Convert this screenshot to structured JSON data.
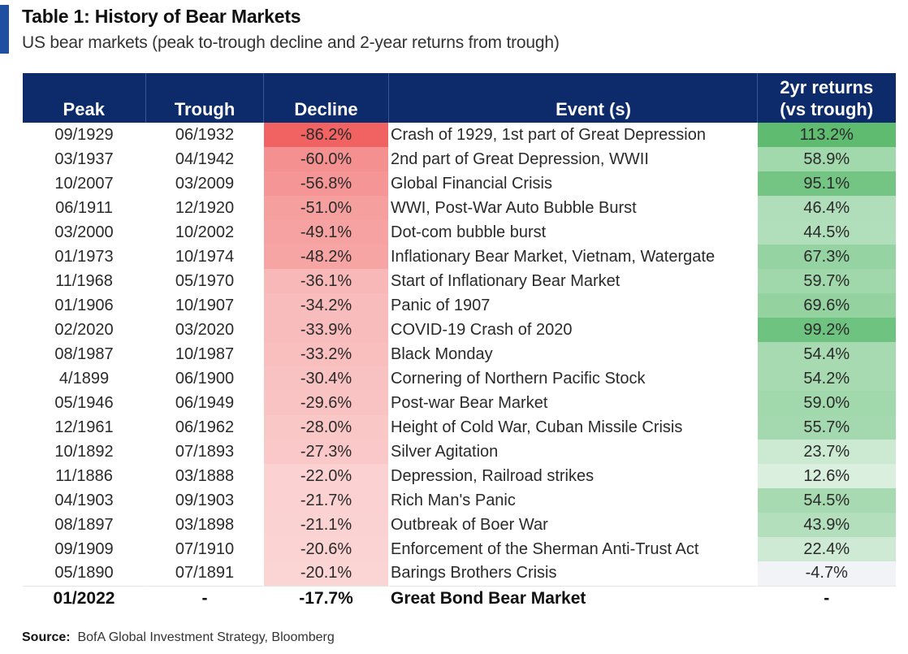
{
  "header": {
    "title": "Table 1: History of Bear Markets",
    "subtitle": "US bear markets (peak to-trough decline and 2-year returns from trough)"
  },
  "footer": {
    "source_label": "Source:",
    "source_text": "BofA Global Investment Strategy, Bloomberg"
  },
  "colors": {
    "header_bg": "#0d2a6b",
    "accent": "#1f4fa0",
    "decline_base": "#f05a5a",
    "returns_base": "#4cb461"
  },
  "chart_data": {
    "type": "table",
    "title": "Table 1: History of Bear Markets",
    "subtitle": "US bear markets (peak to-trough decline and 2-year returns from trough)",
    "columns": [
      "Peak",
      "Trough",
      "Decline",
      "Event (s)",
      "2yr returns (vs trough)"
    ],
    "column_header_lines": {
      "returns_line1": "2yr returns",
      "returns_line2": "(vs trough)"
    },
    "rows": [
      {
        "peak": "09/1929",
        "trough": "06/1932",
        "decline": "-86.2%",
        "decline_value": -86.2,
        "event": "Crash of 1929, 1st part of Great Depression",
        "returns": "113.2%",
        "returns_value": 113.2
      },
      {
        "peak": "03/1937",
        "trough": "04/1942",
        "decline": "-60.0%",
        "decline_value": -60.0,
        "event": "2nd part of Great Depression, WWII",
        "returns": "58.9%",
        "returns_value": 58.9
      },
      {
        "peak": "10/2007",
        "trough": "03/2009",
        "decline": "-56.8%",
        "decline_value": -56.8,
        "event": "Global Financial Crisis",
        "returns": "95.1%",
        "returns_value": 95.1
      },
      {
        "peak": "06/1911",
        "trough": "12/1920",
        "decline": "-51.0%",
        "decline_value": -51.0,
        "event": "WWI, Post-War Auto Bubble Burst",
        "returns": "46.4%",
        "returns_value": 46.4
      },
      {
        "peak": "03/2000",
        "trough": "10/2002",
        "decline": "-49.1%",
        "decline_value": -49.1,
        "event": "Dot-com bubble burst",
        "returns": "44.5%",
        "returns_value": 44.5
      },
      {
        "peak": "01/1973",
        "trough": "10/1974",
        "decline": "-48.2%",
        "decline_value": -48.2,
        "event": "Inflationary  Bear Market, Vietnam, Watergate",
        "returns": "67.3%",
        "returns_value": 67.3
      },
      {
        "peak": "11/1968",
        "trough": "05/1970",
        "decline": "-36.1%",
        "decline_value": -36.1,
        "event": "Start of Inflationary  Bear Market",
        "returns": "59.7%",
        "returns_value": 59.7
      },
      {
        "peak": "01/1906",
        "trough": "10/1907",
        "decline": "-34.2%",
        "decline_value": -34.2,
        "event": "Panic of 1907",
        "returns": "69.6%",
        "returns_value": 69.6
      },
      {
        "peak": "02/2020",
        "trough": "03/2020",
        "decline": "-33.9%",
        "decline_value": -33.9,
        "event": "COVID-19 Crash of 2020",
        "returns": "99.2%",
        "returns_value": 99.2
      },
      {
        "peak": "08/1987",
        "trough": "10/1987",
        "decline": "-33.2%",
        "decline_value": -33.2,
        "event": "Black Monday",
        "returns": "54.4%",
        "returns_value": 54.4
      },
      {
        "peak": "4/1899",
        "trough": "06/1900",
        "decline": "-30.4%",
        "decline_value": -30.4,
        "event": "Cornering of Northern Pacific Stock",
        "returns": "54.2%",
        "returns_value": 54.2
      },
      {
        "peak": "05/1946",
        "trough": "06/1949",
        "decline": "-29.6%",
        "decline_value": -29.6,
        "event": "Post-war Bear Market",
        "returns": "59.0%",
        "returns_value": 59.0
      },
      {
        "peak": "12/1961",
        "trough": "06/1962",
        "decline": "-28.0%",
        "decline_value": -28.0,
        "event": "Height of Cold War,  Cuban Missile Crisis",
        "returns": "55.7%",
        "returns_value": 55.7
      },
      {
        "peak": "10/1892",
        "trough": "07/1893",
        "decline": "-27.3%",
        "decline_value": -27.3,
        "event": "Silver Agitation",
        "returns": "23.7%",
        "returns_value": 23.7
      },
      {
        "peak": "11/1886",
        "trough": "03/1888",
        "decline": "-22.0%",
        "decline_value": -22.0,
        "event": "Depression, Railroad strikes",
        "returns": "12.6%",
        "returns_value": 12.6
      },
      {
        "peak": "04/1903",
        "trough": "09/1903",
        "decline": "-21.7%",
        "decline_value": -21.7,
        "event": "Rich Man's Panic",
        "returns": "54.5%",
        "returns_value": 54.5
      },
      {
        "peak": "08/1897",
        "trough": "03/1898",
        "decline": "-21.1%",
        "decline_value": -21.1,
        "event": "Outbreak of Boer War",
        "returns": "43.9%",
        "returns_value": 43.9
      },
      {
        "peak": "09/1909",
        "trough": "07/1910",
        "decline": "-20.6%",
        "decline_value": -20.6,
        "event": "Enforcement of the Sherman Anti-Trust Act",
        "returns": "22.4%",
        "returns_value": 22.4
      },
      {
        "peak": "05/1890",
        "trough": "07/1891",
        "decline": "-20.1%",
        "decline_value": -20.1,
        "event": "Barings Brothers Crisis",
        "returns": "-4.7%",
        "returns_value": -4.7
      }
    ],
    "final_row": {
      "peak": "01/2022",
      "trough": "-",
      "decline": "-17.7%",
      "event": "Great Bond Bear Market",
      "returns": "-"
    }
  }
}
